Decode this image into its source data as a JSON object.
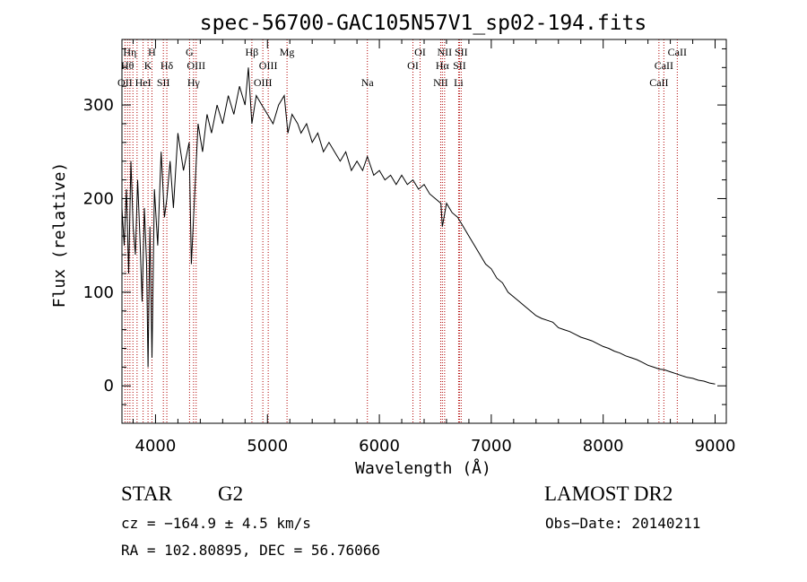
{
  "chart_data": {
    "type": "line",
    "title": "spec-56700-GAC105N57V1_sp02-194.fits",
    "xlabel": "Wavelength (Å)",
    "ylabel": "Flux (relative)",
    "xlim": [
      3700,
      9100
    ],
    "ylim": [
      -40,
      370
    ],
    "xticks": [
      4000,
      5000,
      6000,
      7000,
      8000,
      9000
    ],
    "yticks": [
      0,
      100,
      200,
      300
    ],
    "grid": false,
    "series": [
      {
        "color": "#000000",
        "x": [
          3700,
          3720,
          3740,
          3760,
          3780,
          3800,
          3820,
          3840,
          3860,
          3880,
          3900,
          3920,
          3933,
          3950,
          3968,
          3990,
          4020,
          4050,
          4080,
          4101,
          4130,
          4160,
          4200,
          4250,
          4300,
          4320,
          4340,
          4380,
          4420,
          4460,
          4500,
          4550,
          4600,
          4650,
          4700,
          4750,
          4800,
          4830,
          4861,
          4900,
          4950,
          5000,
          5050,
          5100,
          5150,
          5183,
          5220,
          5270,
          5300,
          5350,
          5400,
          5450,
          5500,
          5550,
          5600,
          5650,
          5700,
          5750,
          5800,
          5850,
          5893,
          5950,
          6000,
          6050,
          6100,
          6150,
          6200,
          6250,
          6300,
          6350,
          6400,
          6450,
          6500,
          6550,
          6563,
          6600,
          6650,
          6700,
          6750,
          6800,
          6850,
          6900,
          6950,
          7000,
          7050,
          7100,
          7150,
          7200,
          7250,
          7300,
          7350,
          7400,
          7450,
          7500,
          7550,
          7600,
          7650,
          7700,
          7750,
          7800,
          7850,
          7900,
          7950,
          8000,
          8050,
          8100,
          8150,
          8200,
          8250,
          8300,
          8350,
          8400,
          8450,
          8500,
          8550,
          8600,
          8650,
          8700,
          8750,
          8800,
          8850,
          8900,
          8950,
          9000
        ],
        "y": [
          190,
          150,
          210,
          120,
          240,
          170,
          140,
          220,
          160,
          90,
          190,
          130,
          20,
          170,
          30,
          210,
          150,
          250,
          180,
          200,
          240,
          190,
          270,
          230,
          260,
          130,
          180,
          280,
          250,
          290,
          270,
          300,
          280,
          310,
          290,
          320,
          300,
          340,
          280,
          310,
          300,
          290,
          280,
          300,
          310,
          270,
          290,
          280,
          270,
          280,
          260,
          270,
          250,
          260,
          250,
          240,
          250,
          230,
          240,
          230,
          245,
          225,
          230,
          220,
          225,
          215,
          225,
          215,
          220,
          210,
          215,
          205,
          200,
          195,
          170,
          195,
          185,
          180,
          170,
          160,
          150,
          140,
          130,
          125,
          115,
          110,
          100,
          95,
          90,
          85,
          80,
          75,
          72,
          70,
          68,
          62,
          60,
          58,
          55,
          52,
          50,
          48,
          45,
          42,
          40,
          37,
          35,
          32,
          30,
          28,
          25,
          22,
          20,
          18,
          17,
          15,
          13,
          11,
          9,
          8,
          6,
          5,
          3,
          2
        ]
      }
    ],
    "lines": [
      {
        "x": 3727,
        "labels": [
          "OII"
        ],
        "row": 3
      },
      {
        "x": 3750,
        "labels": [
          "Hθ"
        ],
        "row": 2
      },
      {
        "x": 3771,
        "labels": [
          "Hη"
        ],
        "row": 1
      },
      {
        "x": 3798,
        "labels": [],
        "row": 0
      },
      {
        "x": 3835,
        "labels": [],
        "row": 0
      },
      {
        "x": 3889,
        "labels": [
          "HeI"
        ],
        "row": 3
      },
      {
        "x": 3933,
        "labels": [
          "K"
        ],
        "row": 2
      },
      {
        "x": 3968,
        "labels": [
          "H"
        ],
        "row": 1
      },
      {
        "x": 4070,
        "labels": [
          "SII"
        ],
        "row": 3
      },
      {
        "x": 4101,
        "labels": [
          "Hδ"
        ],
        "row": 2
      },
      {
        "x": 4304,
        "labels": [
          "G"
        ],
        "row": 1
      },
      {
        "x": 4340,
        "labels": [
          "Hγ"
        ],
        "row": 3
      },
      {
        "x": 4363,
        "labels": [
          "OIII"
        ],
        "row": 2
      },
      {
        "x": 4861,
        "labels": [
          "Hβ"
        ],
        "row": 1
      },
      {
        "x": 4959,
        "labels": [
          "OIII"
        ],
        "row": 3
      },
      {
        "x": 5007,
        "labels": [
          "OIII"
        ],
        "row": 2
      },
      {
        "x": 5175,
        "labels": [
          "Mg"
        ],
        "row": 1
      },
      {
        "x": 5893,
        "labels": [
          "Na"
        ],
        "row": 3
      },
      {
        "x": 6300,
        "labels": [
          "OI"
        ],
        "row": 2
      },
      {
        "x": 6364,
        "labels": [
          "OI"
        ],
        "row": 1
      },
      {
        "x": 6548,
        "labels": [
          "NII"
        ],
        "row": 3
      },
      {
        "x": 6563,
        "labels": [
          "Hα"
        ],
        "row": 2
      },
      {
        "x": 6583,
        "labels": [
          "NII"
        ],
        "row": 1
      },
      {
        "x": 6708,
        "labels": [
          "Li"
        ],
        "row": 3
      },
      {
        "x": 6716,
        "labels": [
          "SII"
        ],
        "row": 2
      },
      {
        "x": 6731,
        "labels": [
          "SII"
        ],
        "row": 1
      },
      {
        "x": 8498,
        "labels": [
          "CaII"
        ],
        "row": 3
      },
      {
        "x": 8542,
        "labels": [
          "CaII"
        ],
        "row": 2
      },
      {
        "x": 8662,
        "labels": [
          "CaII"
        ],
        "row": 1
      }
    ]
  },
  "info": {
    "object_class": "STAR",
    "subclass": "G2",
    "survey": "LAMOST DR2",
    "cz": "cz = −164.9 ± 4.5 km/s",
    "obs_date": "Obs−Date: 20140211",
    "coords": "RA = 102.80895, DEC =  56.76066"
  }
}
